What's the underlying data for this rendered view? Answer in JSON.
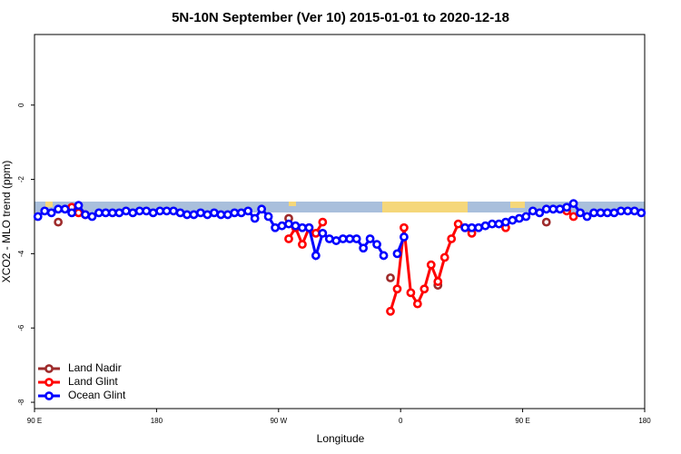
{
  "chart_data": {
    "type": "line",
    "title": "5N-10N September (Ver 10)   2015-01-01 to 2020-12-18",
    "x_label": "Longitude",
    "y_label": "XCO2 - MLO trend (ppm)",
    "xlim": [
      90,
      540
    ],
    "ylim": [
      -8.17,
      1.9
    ],
    "xticks": [
      {
        "value": 90,
        "label": "90 E"
      },
      {
        "value": 180,
        "label": "180"
      },
      {
        "value": 270,
        "label": "90 W"
      },
      {
        "value": 360,
        "label": "0"
      },
      {
        "value": 450,
        "label": "90 E"
      },
      {
        "value": 540,
        "label": "180"
      }
    ],
    "yticks": [
      0,
      -2,
      -4,
      -6,
      -8
    ],
    "legend": "bottom-left",
    "series": [
      {
        "name": "Land Nadir",
        "color": "#9e2b2b",
        "x": [
          107.5,
          112.5,
          277.5,
          282.5,
          352.5,
          357.5,
          387.5,
          392.5,
          467.5
        ],
        "values": [
          -3.15,
          null,
          -3.05,
          null,
          -4.65,
          null,
          -4.85,
          null,
          -3.15
        ]
      },
      {
        "name": "Land Glint",
        "color": "#ff0000",
        "x": [
          117.5,
          122.5,
          127.5,
          132.5,
          277.5,
          282.5,
          287.5,
          292.5,
          297.5,
          302.5,
          307.5,
          352.5,
          357.5,
          362.5,
          367.5,
          372.5,
          377.5,
          382.5,
          387.5,
          392.5,
          397.5,
          402.5,
          407.5,
          412.5,
          417.5,
          437.5,
          442.5,
          482.5,
          487.5
        ],
        "values": [
          -2.75,
          -2.9,
          -2.95,
          null,
          -3.6,
          -3.3,
          -3.75,
          -3.3,
          -3.45,
          -3.15,
          null,
          -5.55,
          -4.95,
          -3.3,
          -5.05,
          -5.35,
          -4.95,
          -4.3,
          -4.75,
          -4.1,
          -3.6,
          -3.2,
          -3.3,
          -3.45,
          null,
          -3.3,
          null,
          -2.85,
          -3.0
        ]
      },
      {
        "name": "Ocean Glint",
        "color": "#0000ff",
        "x": [
          92.5,
          97.5,
          102.5,
          107.5,
          112.5,
          117.5,
          122.5,
          127.5,
          132.5,
          137.5,
          142.5,
          147.5,
          152.5,
          157.5,
          162.5,
          167.5,
          172.5,
          177.5,
          182.5,
          187.5,
          192.5,
          197.5,
          202.5,
          207.5,
          212.5,
          217.5,
          222.5,
          227.5,
          232.5,
          237.5,
          242.5,
          247.5,
          252.5,
          257.5,
          262.5,
          267.5,
          272.5,
          277.5,
          282.5,
          287.5,
          292.5,
          297.5,
          302.5,
          307.5,
          312.5,
          317.5,
          322.5,
          327.5,
          332.5,
          337.5,
          342.5,
          347.5,
          352.5,
          357.5,
          362.5,
          367.5,
          407.5,
          412.5,
          417.5,
          422.5,
          427.5,
          432.5,
          437.5,
          442.5,
          447.5,
          452.5,
          457.5,
          462.5,
          467.5,
          472.5,
          477.5,
          482.5,
          487.5,
          492.5,
          497.5,
          502.5,
          507.5,
          512.5,
          517.5,
          522.5,
          527.5,
          532.5,
          537.5
        ],
        "values": [
          -3.0,
          -2.85,
          -2.9,
          -2.8,
          -2.8,
          -2.9,
          -2.7,
          -2.95,
          -3.0,
          -2.9,
          -2.9,
          -2.9,
          -2.9,
          -2.85,
          -2.9,
          -2.85,
          -2.85,
          -2.9,
          -2.85,
          -2.85,
          -2.85,
          -2.9,
          -2.95,
          -2.95,
          -2.9,
          -2.95,
          -2.9,
          -2.95,
          -2.95,
          -2.9,
          -2.9,
          -2.85,
          -3.05,
          -2.8,
          -3.0,
          -3.3,
          -3.25,
          -3.2,
          -3.25,
          -3.3,
          -3.3,
          -4.05,
          -3.45,
          -3.6,
          -3.65,
          -3.6,
          -3.6,
          -3.6,
          -3.85,
          -3.6,
          -3.75,
          -4.05,
          null,
          -4.0,
          -3.55,
          null,
          -3.3,
          -3.3,
          -3.3,
          -3.25,
          -3.2,
          -3.2,
          -3.15,
          -3.1,
          -3.05,
          -3.0,
          -2.85,
          -2.9,
          -2.8,
          -2.8,
          -2.8,
          -2.75,
          -2.65,
          -2.9,
          -3.0,
          -2.9,
          -2.9,
          -2.9,
          -2.9,
          -2.85,
          -2.85,
          -2.85,
          -2.9
        ]
      }
    ]
  }
}
